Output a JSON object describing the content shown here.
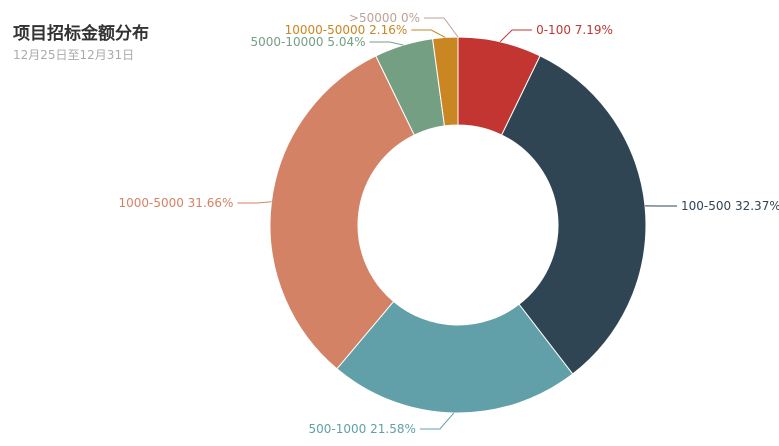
{
  "chart_data": {
    "type": "pie",
    "title": "项目招标金额分布",
    "subtitle": "12月25日至12月31日",
    "slices": [
      {
        "name": "0-100",
        "value": 7.19,
        "label": "0-100 7.19%",
        "color": "#c23531"
      },
      {
        "name": "100-500",
        "value": 32.37,
        "label": "100-500 32.37%",
        "color": "#2f4554"
      },
      {
        "name": "500-1000",
        "value": 21.58,
        "label": "500-1000 21.58%",
        "color": "#61a0a8"
      },
      {
        "name": "1000-5000",
        "value": 31.66,
        "label": "1000-5000 31.66%",
        "color": "#d48265"
      },
      {
        "name": "5000-10000",
        "value": 5.04,
        "label": "5000-10000 5.04%",
        "color": "#749f83"
      },
      {
        "name": "10000-50000",
        "value": 2.16,
        "label": "10000-50000 2.16%",
        "color": "#ca8622"
      },
      {
        "name": ">50000",
        "value": 0,
        "label": ">50000 0%",
        "color": "#bda29a"
      }
    ]
  }
}
